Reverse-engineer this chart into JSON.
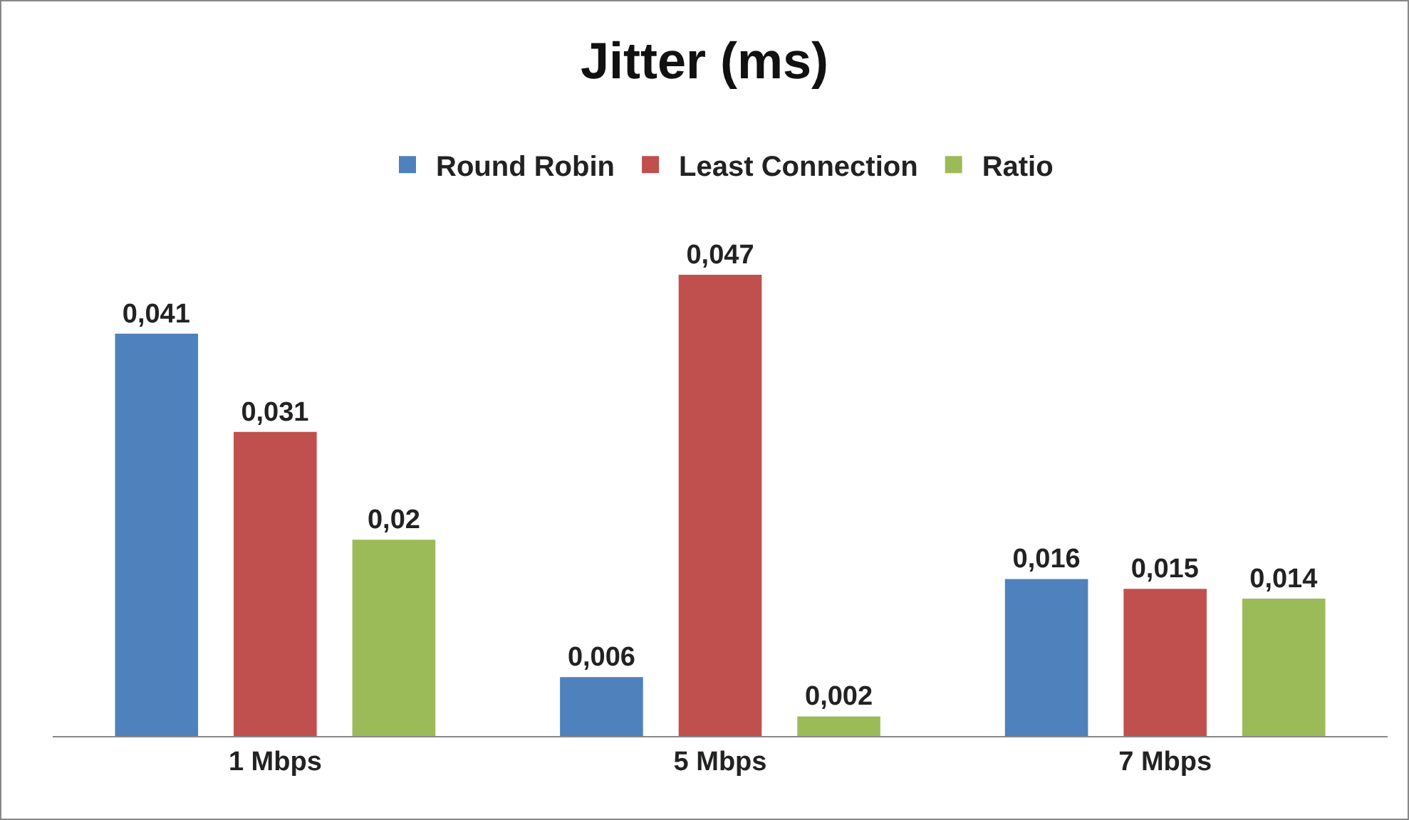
{
  "chart_data": {
    "type": "bar",
    "title": "Jitter (ms)",
    "categories": [
      "1 Mbps",
      "5 Mbps",
      "7 Mbps"
    ],
    "series": [
      {
        "name": "Round Robin",
        "color": "#4f81bd",
        "values": [
          0.041,
          0.006,
          0.016
        ],
        "value_labels": [
          "0,041",
          "0,006",
          "0,016"
        ]
      },
      {
        "name": "Least Connection",
        "color": "#c0504d",
        "values": [
          0.031,
          0.047,
          0.015
        ],
        "value_labels": [
          "0,031",
          "0,047",
          "0,015"
        ]
      },
      {
        "name": "Ratio",
        "color": "#9bbb59",
        "values": [
          0.02,
          0.002,
          0.014
        ],
        "value_labels": [
          "0,02",
          "0,002",
          "0,014"
        ]
      }
    ],
    "legend": "top",
    "grid": false,
    "tick_labels": "x"
  }
}
